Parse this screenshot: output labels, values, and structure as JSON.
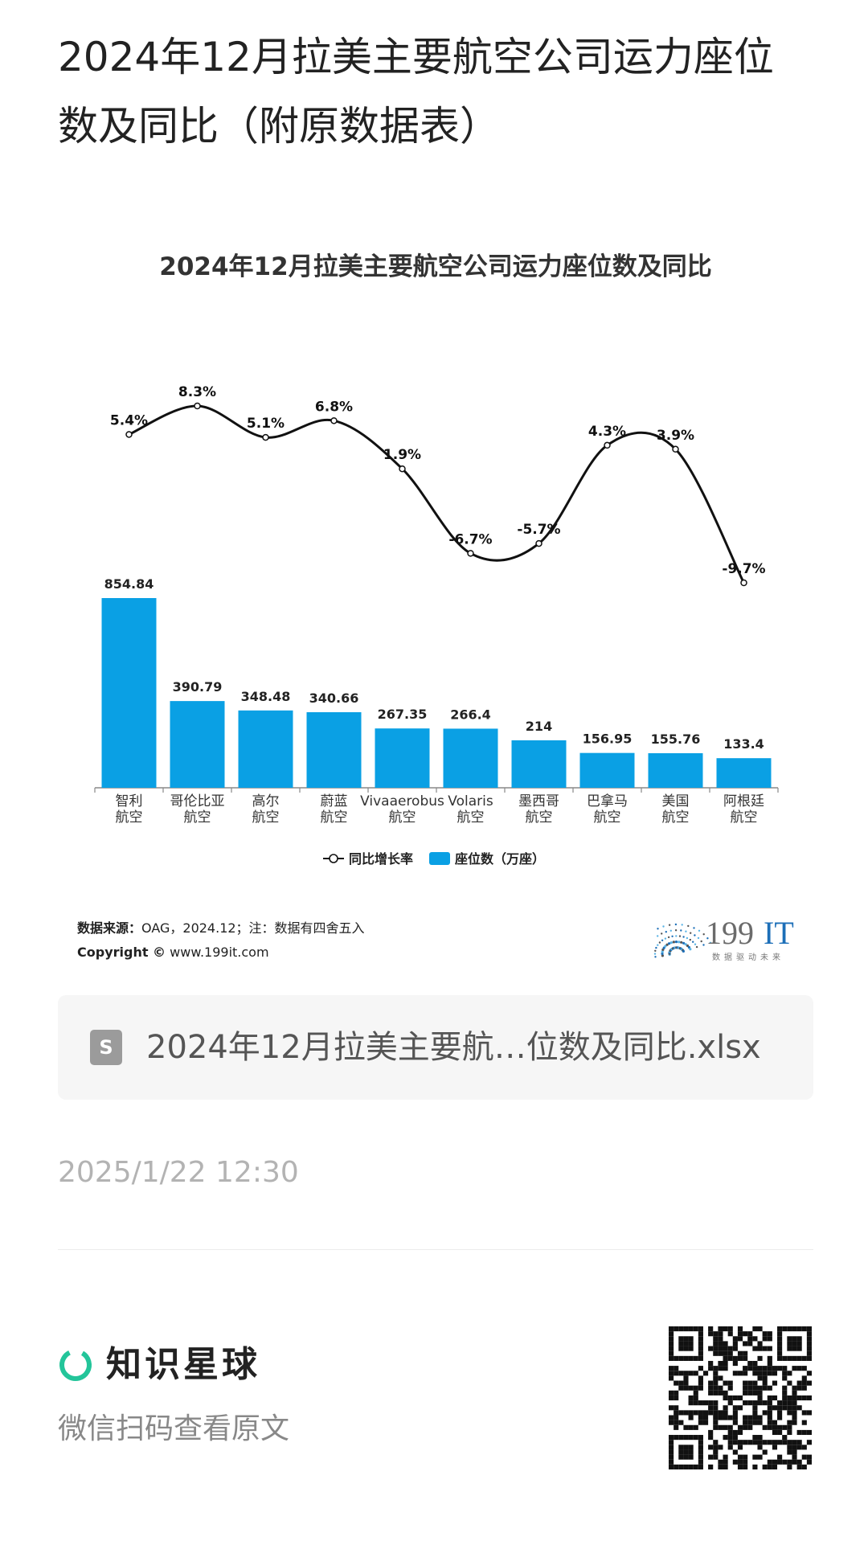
{
  "page": {
    "title": "2024年12月拉美主要航空公司运力座位数及同比（附原数据表）"
  },
  "chart_data": {
    "type": "bar+line",
    "title": "2024年12月拉美主要航空公司运力座位数及同比",
    "categories": [
      [
        "智利",
        "航空"
      ],
      [
        "哥伦比亚",
        "航空"
      ],
      [
        "高尔",
        "航空"
      ],
      [
        "蔚蓝",
        "航空"
      ],
      [
        "Vivaaerobus",
        "航空"
      ],
      [
        "Volaris",
        "航空"
      ],
      [
        "墨西哥",
        "航空"
      ],
      [
        "巴拿马",
        "航空"
      ],
      [
        "美国",
        "航空"
      ],
      [
        "阿根廷",
        "航空"
      ]
    ],
    "series": [
      {
        "name": "座位数（万座）",
        "kind": "bar",
        "color": "#0aa0e4",
        "values": [
          854.84,
          390.79,
          348.48,
          340.66,
          267.35,
          266.4,
          214,
          156.95,
          155.76,
          133.4
        ],
        "labels": [
          "854.84",
          "390.79",
          "348.48",
          "340.66",
          "267.35",
          "266.4",
          "214",
          "156.95",
          "155.76",
          "133.4"
        ]
      },
      {
        "name": "同比增长率",
        "kind": "line",
        "color": "#111111",
        "values": [
          5.4,
          8.3,
          5.1,
          6.8,
          1.9,
          -6.7,
          -5.7,
          4.3,
          3.9,
          -9.7
        ],
        "labels": [
          "5.4%",
          "8.3%",
          "5.1%",
          "6.8%",
          "1.9%",
          "-6.7%",
          "-5.7%",
          "4.3%",
          "3.9%",
          "-9.7%"
        ]
      }
    ],
    "legend": {
      "placement": "bottom",
      "line_label": "同比增长率",
      "bar_label": "座位数（万座）"
    }
  },
  "source": {
    "label": "数据来源：",
    "text": "OAG，2024.12；注：数据有四舍五入",
    "copyright_label": "Copyright ©",
    "copyright_site": "www.199it.com"
  },
  "logo": {
    "name": "199IT",
    "name_plain": "199",
    "name_accent": "IT",
    "slogan": "数据驱动未来",
    "accent_color": "#1d6fb8"
  },
  "file": {
    "icon": "spreadsheet-file-icon",
    "name": "2024年12月拉美主要航…位数及同比.xlsx"
  },
  "timestamp": "2025/1/22 12:30",
  "brand": {
    "name": "知识星球",
    "subtitle": "微信扫码查看原文",
    "ring_color": "#23c59a"
  }
}
